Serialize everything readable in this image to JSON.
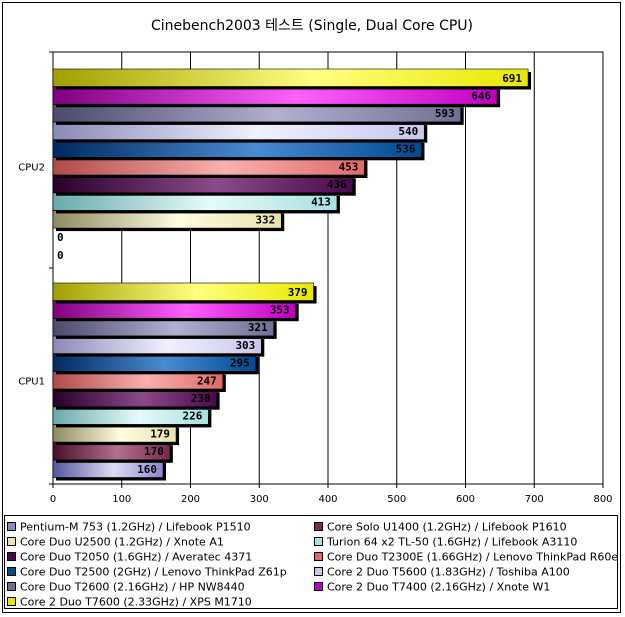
{
  "chart_data": {
    "type": "bar",
    "orientation": "horizontal",
    "title": "Cinebench2003 테스트 (Single, Dual Core CPU)",
    "xlim": [
      0,
      800
    ],
    "xticks": [
      0,
      100,
      200,
      300,
      400,
      500,
      600,
      700,
      800
    ],
    "grid": true,
    "legend_position": "bottom",
    "groups": [
      {
        "name": "CPU2",
        "bars": [
          {
            "series": 0,
            "value": 0
          },
          {
            "series": 1,
            "value": 0
          },
          {
            "series": 2,
            "value": 332
          },
          {
            "series": 3,
            "value": 413
          },
          {
            "series": 4,
            "value": 436
          },
          {
            "series": 5,
            "value": 453
          },
          {
            "series": 6,
            "value": 536
          },
          {
            "series": 7,
            "value": 540
          },
          {
            "series": 8,
            "value": 593
          },
          {
            "series": 9,
            "value": 646
          },
          {
            "series": 10,
            "value": 691
          }
        ]
      },
      {
        "name": "CPU1",
        "bars": [
          {
            "series": 0,
            "value": 160
          },
          {
            "series": 1,
            "value": 170
          },
          {
            "series": 2,
            "value": 179
          },
          {
            "series": 3,
            "value": 226
          },
          {
            "series": 4,
            "value": 238
          },
          {
            "series": 5,
            "value": 247
          },
          {
            "series": 6,
            "value": 295
          },
          {
            "series": 7,
            "value": 303
          },
          {
            "series": 8,
            "value": 321
          },
          {
            "series": 9,
            "value": 353
          },
          {
            "series": 10,
            "value": 379
          }
        ]
      }
    ],
    "series": [
      {
        "name": "Pentium-M 753 (1.2GHz) / Lifebook P1510",
        "color": "#8888cc",
        "light": "#ddddf6",
        "dark": "#5555a0"
      },
      {
        "name": "Core Solo U1400 (1.2GHz) / Lifebook P1610",
        "color": "#7a2a4a",
        "light": "#b07090",
        "dark": "#4a1028"
      },
      {
        "name": "Core Duo U2500 (1.2GHz) / Xnote A1",
        "color": "#e8e2b0",
        "light": "#fffce0",
        "dark": "#8f8a60"
      },
      {
        "name": "Turion 64 x2 TL-50 (1.6GHz) / Lifebook A3110",
        "color": "#a8e0e0",
        "light": "#e6fafa",
        "dark": "#6aaaaa"
      },
      {
        "name": "Core Duo T2050 (1.6GHz) / Averatec 4371",
        "color": "#4a0a4a",
        "light": "#8a4a8a",
        "dark": "#2a002a"
      },
      {
        "name": "Core Duo T2300E (1.66GHz) / Lenovo ThinkPad R60e",
        "color": "#e06a6a",
        "light": "#f8b0b0",
        "dark": "#b04a4a"
      },
      {
        "name": "Core Duo T2500 (2GHz) / Lenovo ThinkPad Z61p",
        "color": "#004a90",
        "light": "#4a8ad0",
        "dark": "#002a60"
      },
      {
        "name": "Core 2 Duo T5600 (1.83GHz) / Toshiba A100",
        "color": "#c8c8ee",
        "light": "#f0f0ff",
        "dark": "#8a8ab8"
      },
      {
        "name": "Core Duo T2600 (2.16GHz) / HP NW8440",
        "color": "#707090",
        "light": "#b0b0d0",
        "dark": "#4a4a6a"
      },
      {
        "name": "Core 2 Duo T7400 (2.16GHz) / Xnote W1",
        "color": "#c000c0",
        "light": "#ff60ff",
        "dark": "#800080"
      },
      {
        "name": "Core 2 Duo T7600 (2.33GHz) / XPS M1710",
        "color": "#e8e800",
        "light": "#ffff80",
        "dark": "#a0a000"
      }
    ]
  }
}
